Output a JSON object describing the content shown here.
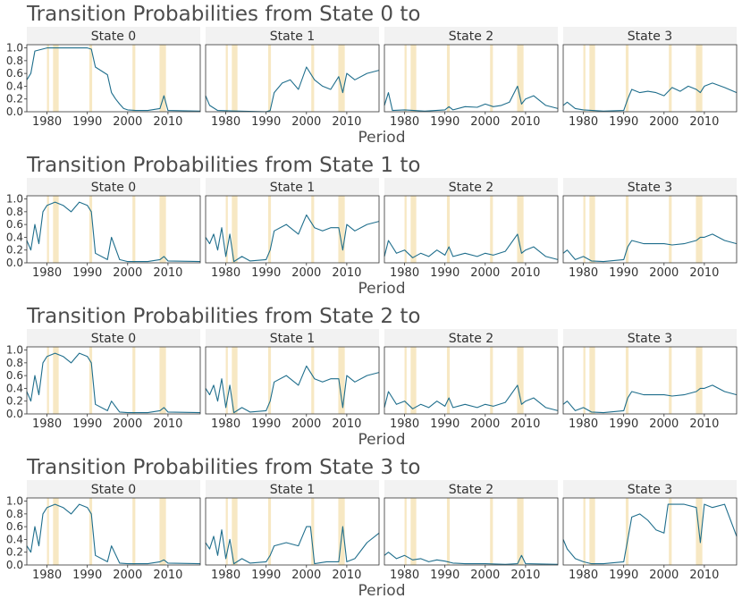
{
  "colors": {
    "line": "#1f6e8c",
    "line_highlight": "#4a9a3c",
    "recession": "#f7e8c3",
    "strip_bg": "#f2f2f2",
    "text": "#333333",
    "title": "#4d4d4d",
    "axis": "#333333"
  },
  "chart_data": {
    "type": "line",
    "xlabel": "Period",
    "ylabel": "",
    "xlim": [
      1975,
      2018
    ],
    "ylim": [
      0,
      1.05
    ],
    "x_ticks": [
      1980,
      1990,
      2000,
      2010
    ],
    "y_ticks": [
      0.0,
      0.2,
      0.4,
      0.6,
      0.8,
      1.0
    ],
    "y_tick_labels": [
      "0.0",
      "0.2",
      "0.4",
      "0.6",
      "0.8",
      "1.0"
    ],
    "recessions": [
      [
        1980.0,
        1980.5
      ],
      [
        1981.5,
        1982.9
      ],
      [
        1990.5,
        1991.2
      ],
      [
        2001.2,
        2001.9
      ],
      [
        2007.9,
        2009.5
      ]
    ],
    "grid": false,
    "panels": [
      {
        "title": "Transition Probabilities from State 0 to",
        "facets": [
          {
            "label": "State 0",
            "x": [
              1975,
              1976,
              1977,
              1980,
              1985,
              1990,
              1991,
              1992,
              1995,
              1996,
              1997,
              1998,
              1999,
              2000,
              2002,
              2005,
              2008,
              2009,
              2010,
              2018
            ],
            "values": [
              0.5,
              0.6,
              0.95,
              1.0,
              1.0,
              1.0,
              0.98,
              0.7,
              0.58,
              0.3,
              0.2,
              0.12,
              0.05,
              0.03,
              0.02,
              0.02,
              0.05,
              0.25,
              0.02,
              0.01
            ]
          },
          {
            "label": "State 1",
            "x": [
              1975,
              1976,
              1978,
              1990,
              1991,
              1992,
              1994,
              1996,
              1998,
              2000,
              2002,
              2004,
              2006,
              2008,
              2009,
              2010,
              2012,
              2015,
              2018
            ],
            "values": [
              0.25,
              0.1,
              0.02,
              0.0,
              0.02,
              0.3,
              0.45,
              0.5,
              0.35,
              0.7,
              0.5,
              0.4,
              0.35,
              0.55,
              0.3,
              0.6,
              0.5,
              0.6,
              0.65
            ]
          },
          {
            "label": "State 2",
            "x": [
              1975,
              1976,
              1977,
              1980,
              1985,
              1990,
              1991,
              1992,
              1995,
              1998,
              2000,
              2002,
              2004,
              2006,
              2008,
              2009,
              2010,
              2012,
              2015,
              2018
            ],
            "values": [
              0.1,
              0.3,
              0.02,
              0.03,
              0.01,
              0.03,
              0.08,
              0.03,
              0.08,
              0.07,
              0.12,
              0.08,
              0.1,
              0.15,
              0.4,
              0.12,
              0.2,
              0.25,
              0.1,
              0.05
            ]
          },
          {
            "label": "State 3",
            "x": [
              1975,
              1976,
              1978,
              1980,
              1985,
              1990,
              1991,
              1992,
              1994,
              1996,
              1998,
              2000,
              2002,
              2004,
              2006,
              2008,
              2009,
              2010,
              2012,
              2015,
              2018
            ],
            "values": [
              0.1,
              0.15,
              0.05,
              0.03,
              0.01,
              0.02,
              0.2,
              0.35,
              0.3,
              0.32,
              0.3,
              0.25,
              0.38,
              0.32,
              0.4,
              0.35,
              0.3,
              0.4,
              0.45,
              0.38,
              0.3
            ]
          }
        ]
      },
      {
        "title": "Transition Probabilities from State 1 to",
        "facets": [
          {
            "label": "State 0",
            "x": [
              1975,
              1976,
              1977,
              1978,
              1979,
              1980,
              1982,
              1984,
              1986,
              1988,
              1990,
              1991,
              1992,
              1995,
              1996,
              1998,
              2000,
              2005,
              2008,
              2009,
              2010,
              2018
            ],
            "values": [
              0.35,
              0.2,
              0.6,
              0.3,
              0.8,
              0.9,
              0.95,
              0.9,
              0.8,
              0.95,
              0.9,
              0.8,
              0.15,
              0.05,
              0.4,
              0.05,
              0.02,
              0.02,
              0.05,
              0.1,
              0.03,
              0.02
            ]
          },
          {
            "label": "State 1",
            "x": [
              1975,
              1976,
              1977,
              1978,
              1979,
              1980,
              1981,
              1982,
              1984,
              1986,
              1990,
              1991,
              1992,
              1995,
              1998,
              2000,
              2002,
              2004,
              2006,
              2008,
              2009,
              2010,
              2012,
              2015,
              2018
            ],
            "values": [
              0.4,
              0.3,
              0.45,
              0.2,
              0.55,
              0.1,
              0.45,
              0.02,
              0.1,
              0.03,
              0.05,
              0.2,
              0.5,
              0.6,
              0.45,
              0.75,
              0.55,
              0.5,
              0.55,
              0.55,
              0.2,
              0.6,
              0.5,
              0.6,
              0.65
            ]
          },
          {
            "label": "State 2",
            "x": [
              1975,
              1976,
              1978,
              1980,
              1982,
              1984,
              1986,
              1988,
              1990,
              1991,
              1992,
              1995,
              1998,
              2000,
              2002,
              2005,
              2008,
              2009,
              2010,
              2012,
              2015,
              2018
            ],
            "values": [
              0.1,
              0.35,
              0.15,
              0.2,
              0.08,
              0.15,
              0.1,
              0.2,
              0.12,
              0.25,
              0.1,
              0.15,
              0.1,
              0.15,
              0.12,
              0.18,
              0.45,
              0.15,
              0.2,
              0.25,
              0.1,
              0.05
            ]
          },
          {
            "label": "State 3",
            "x": [
              1975,
              1976,
              1978,
              1980,
              1982,
              1985,
              1990,
              1991,
              1992,
              1995,
              2000,
              2002,
              2005,
              2008,
              2009,
              2010,
              2012,
              2015,
              2018
            ],
            "values": [
              0.15,
              0.2,
              0.05,
              0.1,
              0.03,
              0.02,
              0.05,
              0.25,
              0.35,
              0.3,
              0.3,
              0.28,
              0.3,
              0.35,
              0.4,
              0.4,
              0.45,
              0.35,
              0.3
            ]
          }
        ]
      },
      {
        "title": "Transition Probabilities from State 2 to",
        "facets": [
          {
            "label": "State 0",
            "x": [
              1975,
              1976,
              1977,
              1978,
              1979,
              1980,
              1982,
              1984,
              1986,
              1988,
              1990,
              1991,
              1992,
              1995,
              1996,
              1998,
              2000,
              2005,
              2008,
              2009,
              2010,
              2018
            ],
            "values": [
              0.35,
              0.2,
              0.6,
              0.3,
              0.8,
              0.9,
              0.95,
              0.9,
              0.8,
              0.95,
              0.9,
              0.8,
              0.15,
              0.05,
              0.2,
              0.03,
              0.02,
              0.02,
              0.05,
              0.1,
              0.03,
              0.02
            ]
          },
          {
            "label": "State 1",
            "x": [
              1975,
              1976,
              1977,
              1978,
              1979,
              1980,
              1981,
              1982,
              1984,
              1986,
              1990,
              1991,
              1992,
              1995,
              1998,
              2000,
              2002,
              2004,
              2006,
              2008,
              2009,
              2010,
              2012,
              2015,
              2018
            ],
            "values": [
              0.4,
              0.3,
              0.45,
              0.2,
              0.55,
              0.1,
              0.45,
              0.02,
              0.1,
              0.03,
              0.05,
              0.2,
              0.5,
              0.6,
              0.45,
              0.75,
              0.55,
              0.5,
              0.55,
              0.55,
              0.1,
              0.6,
              0.5,
              0.6,
              0.65
            ]
          },
          {
            "label": "State 2",
            "x": [
              1975,
              1976,
              1978,
              1980,
              1982,
              1984,
              1986,
              1988,
              1990,
              1991,
              1992,
              1995,
              1998,
              2000,
              2002,
              2005,
              2008,
              2009,
              2010,
              2012,
              2015,
              2018
            ],
            "values": [
              0.1,
              0.35,
              0.15,
              0.2,
              0.08,
              0.15,
              0.1,
              0.2,
              0.12,
              0.25,
              0.1,
              0.15,
              0.1,
              0.15,
              0.12,
              0.18,
              0.45,
              0.15,
              0.2,
              0.25,
              0.1,
              0.05
            ]
          },
          {
            "label": "State 3",
            "x": [
              1975,
              1976,
              1978,
              1980,
              1982,
              1985,
              1990,
              1991,
              1992,
              1995,
              2000,
              2002,
              2005,
              2008,
              2009,
              2010,
              2012,
              2015,
              2018
            ],
            "values": [
              0.15,
              0.2,
              0.05,
              0.1,
              0.03,
              0.02,
              0.05,
              0.25,
              0.35,
              0.3,
              0.3,
              0.28,
              0.3,
              0.35,
              0.4,
              0.4,
              0.45,
              0.35,
              0.3
            ]
          }
        ]
      },
      {
        "title": "Transition Probabilities from State 3 to",
        "facets": [
          {
            "label": "State 0",
            "x": [
              1975,
              1976,
              1977,
              1978,
              1979,
              1980,
              1982,
              1984,
              1986,
              1988,
              1990,
              1991,
              1992,
              1995,
              1996,
              1998,
              2000,
              2005,
              2008,
              2009,
              2010,
              2018
            ],
            "values": [
              0.3,
              0.2,
              0.6,
              0.3,
              0.8,
              0.9,
              0.95,
              0.9,
              0.8,
              0.95,
              0.9,
              0.8,
              0.15,
              0.05,
              0.3,
              0.03,
              0.02,
              0.02,
              0.05,
              0.08,
              0.03,
              0.02
            ]
          },
          {
            "label": "State 1",
            "x": [
              1975,
              1976,
              1977,
              1978,
              1979,
              1980,
              1981,
              1982,
              1984,
              1986,
              1990,
              1991,
              1992,
              1995,
              1998,
              2000,
              2001,
              2002,
              2005,
              2008,
              2009,
              2010,
              2012,
              2015,
              2018
            ],
            "values": [
              0.35,
              0.25,
              0.45,
              0.15,
              0.55,
              0.1,
              0.4,
              0.02,
              0.1,
              0.03,
              0.05,
              0.15,
              0.3,
              0.35,
              0.3,
              0.6,
              0.6,
              0.02,
              0.05,
              0.05,
              0.6,
              0.05,
              0.1,
              0.35,
              0.5
            ]
          },
          {
            "label": "State 2",
            "x": [
              1975,
              1976,
              1978,
              1980,
              1982,
              1984,
              1986,
              1988,
              1990,
              1992,
              1995,
              2000,
              2005,
              2008,
              2009,
              2010,
              2018
            ],
            "values": [
              0.15,
              0.2,
              0.1,
              0.15,
              0.08,
              0.1,
              0.05,
              0.08,
              0.06,
              0.03,
              0.02,
              0.02,
              0.01,
              0.02,
              0.15,
              0.02,
              0.01
            ]
          },
          {
            "label": "State 3",
            "x": [
              1975,
              1976,
              1978,
              1980,
              1982,
              1985,
              1990,
              1991,
              1992,
              1994,
              1996,
              1998,
              2000,
              2001,
              2002,
              2005,
              2008,
              2009,
              2010,
              2012,
              2015,
              2018
            ],
            "values": [
              0.4,
              0.25,
              0.1,
              0.05,
              0.02,
              0.02,
              0.05,
              0.4,
              0.75,
              0.8,
              0.7,
              0.55,
              0.5,
              0.95,
              0.95,
              0.95,
              0.9,
              0.35,
              0.95,
              0.9,
              0.95,
              0.45
            ]
          }
        ]
      }
    ]
  }
}
